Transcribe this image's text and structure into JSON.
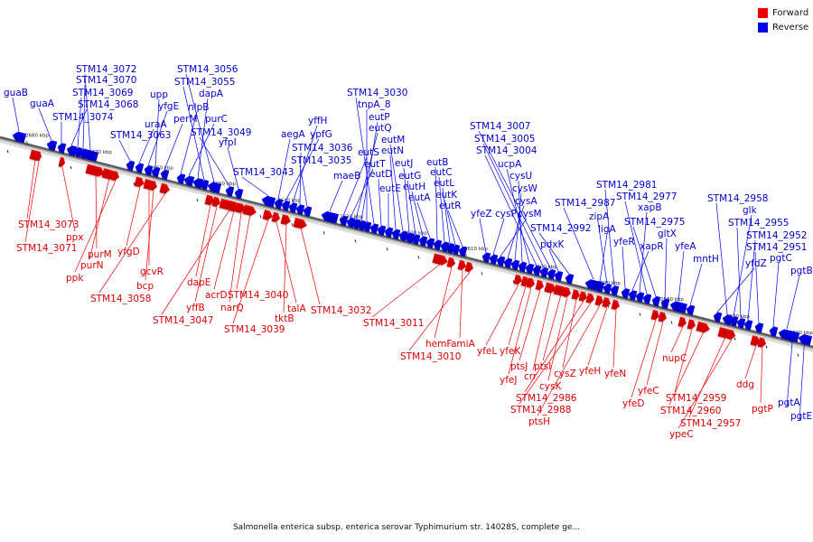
{
  "legend": {
    "forward_label": "Forward",
    "reverse_label": "Reverse",
    "forward_color": "#ee0000",
    "reverse_color": "#0000ee"
  },
  "caption": "Salmonella enterica subsp. enterica serovar Typhimurium str. 14028S, complete ge...",
  "ticks": [
    "2680 kbp",
    "2670 kbp",
    "2660 kbp",
    "2650 kbp",
    "2640 kbp",
    "2630 kbp",
    "2620 kbp",
    "2610 kbp",
    "2600 kbp",
    "2590 kbp",
    "2580 kbp",
    "2570 kbp",
    "2560 kbp"
  ],
  "reverse_genes": [
    "guaB",
    "guaA",
    "STM14_3074",
    "STM14_3068",
    "STM14_3069",
    "STM14_3070",
    "STM14_3072",
    "STM14_3063",
    "uraA",
    "yfgE",
    "upp",
    "perM",
    "nlpB",
    "purC",
    "dapA",
    "STM14_3055",
    "STM14_3056",
    "STM14_3049",
    "yfpI",
    "STM14_3043",
    "aegA",
    "ypfG",
    "yffH",
    "STM14_3036",
    "STM14_3035",
    "maeB",
    "eutS",
    "eutT",
    "eutQ",
    "eutP",
    "tnpA_8",
    "STM14_3030",
    "eutD",
    "eutE",
    "eutN",
    "eutM",
    "eutJ",
    "eutG",
    "eutH",
    "eutA",
    "eutB",
    "eutC",
    "eutL",
    "eutK",
    "eutR",
    "yfeZ",
    "cysP",
    "cysM",
    "cysA",
    "cysW",
    "cysU",
    "ucpA",
    "STM14_3004",
    "STM14_3005",
    "STM14_3007",
    "pdxK",
    "STM14_2992",
    "STM14_2987",
    "ligA",
    "zipA",
    "STM14_2981",
    "yfeR",
    "xapR",
    "xapB",
    "STM14_2977",
    "STM14_2975",
    "gltX",
    "yfeA",
    "mntH",
    "yfdZ",
    "STM14_2958",
    "glk",
    "STM14_2955",
    "STM14_2952",
    "STM14_2951",
    "pgtC",
    "pgtB",
    "pgtA",
    "pgtE"
  ],
  "forward_genes": [
    "STM14_3073",
    "STM14_3071",
    "ppx",
    "purM",
    "purN",
    "ppk",
    "yfgD",
    "gcvR",
    "bcp",
    "STM14_3058",
    "dapE",
    "yffB",
    "STM14_3047",
    "acrD",
    "narQ",
    "STM14_3040",
    "STM14_3039",
    "talA",
    "tktB",
    "STM14_3032",
    "STM14_3011",
    "hemF",
    "amiA",
    "STM14_3010",
    "yfeL",
    "yfeK",
    "yfeJ",
    "ptsJ",
    "crr",
    "ptsI",
    "cysK",
    "cysZ",
    "STM14_2986",
    "STM14_2988",
    "ptsH",
    "yfeH",
    "yfeN",
    "yfeD",
    "yfeC",
    "nupC",
    "STM14_2959",
    "STM14_2960",
    "STM14_2957",
    "ypeC",
    "ddg",
    "pgtP"
  ]
}
